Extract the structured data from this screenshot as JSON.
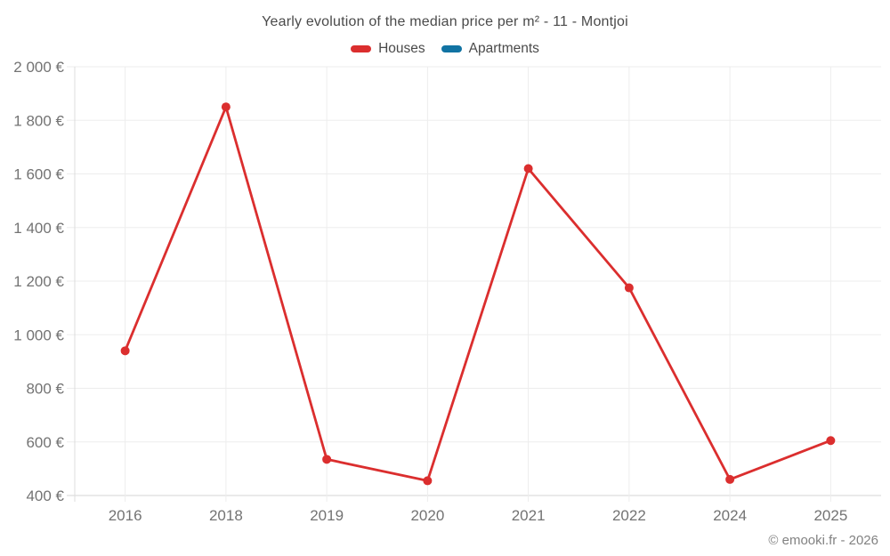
{
  "chart_data": {
    "type": "line",
    "title": "Yearly evolution of the median price per m² - 11 - Montjoi",
    "categories": [
      "2016",
      "2018",
      "2019",
      "2020",
      "2021",
      "2022",
      "2024",
      "2025"
    ],
    "series": [
      {
        "name": "Houses",
        "color": "#db2e2e",
        "values": [
          940,
          1850,
          535,
          455,
          1620,
          1175,
          460,
          605
        ]
      },
      {
        "name": "Apartments",
        "color": "#1173a3",
        "values": []
      }
    ],
    "xlabel": "",
    "ylabel": "",
    "ylim": [
      400,
      2000
    ],
    "yticks": [
      {
        "value": 400,
        "label": "400 €"
      },
      {
        "value": 600,
        "label": "600 €"
      },
      {
        "value": 800,
        "label": "800 €"
      },
      {
        "value": 1000,
        "label": "1 000 €"
      },
      {
        "value": 1200,
        "label": "1 200 €"
      },
      {
        "value": 1400,
        "label": "1 400 €"
      },
      {
        "value": 1600,
        "label": "1 600 €"
      },
      {
        "value": 1800,
        "label": "1 800 €"
      },
      {
        "value": 2000,
        "label": "2 000 €"
      }
    ],
    "grid": true,
    "legend_position": "top"
  },
  "footer": {
    "credit": "© emooki.fr - 2026"
  }
}
